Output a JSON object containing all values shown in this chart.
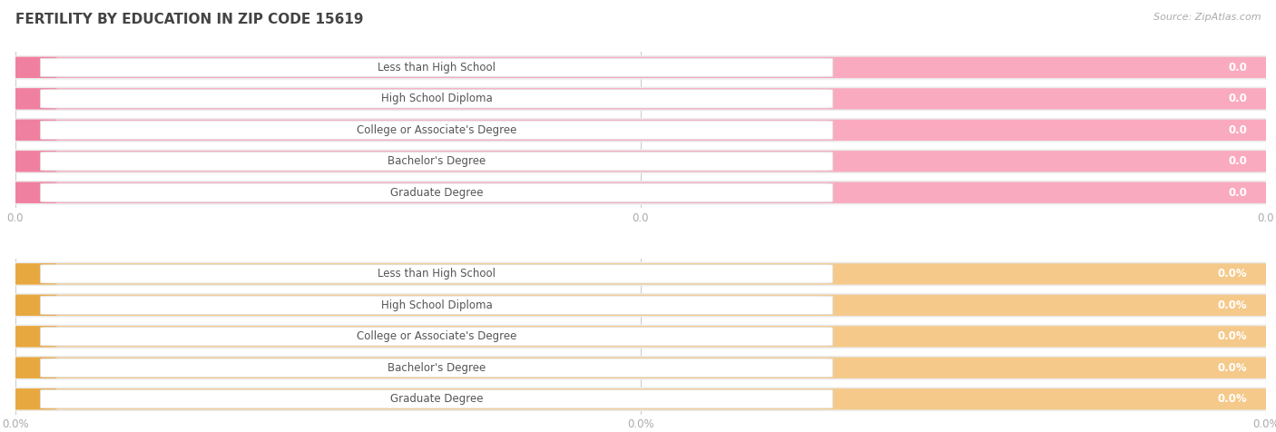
{
  "title": "FERTILITY BY EDUCATION IN ZIP CODE 15619",
  "source_text": "Source: ZipAtlas.com",
  "categories": [
    "Less than High School",
    "High School Diploma",
    "College or Associate's Degree",
    "Bachelor's Degree",
    "Graduate Degree"
  ],
  "values_abs": [
    0.0,
    0.0,
    0.0,
    0.0,
    0.0
  ],
  "values_pct": [
    0.0,
    0.0,
    0.0,
    0.0,
    0.0
  ],
  "bar_color_pink": "#F9AABF",
  "bar_color_pink_left": "#F080A0",
  "bar_color_orange": "#F5C98A",
  "bar_color_orange_left": "#E8A840",
  "label_bg_color": "#FFFFFF",
  "row_bg_color": "#EBEBEB",
  "title_color": "#444444",
  "label_color": "#555555",
  "value_text_color": "#FFFFFF",
  "tick_label_color": "#AAAAAA",
  "source_color": "#AAAAAA",
  "figsize": [
    14.06,
    4.76
  ],
  "dpi": 100
}
